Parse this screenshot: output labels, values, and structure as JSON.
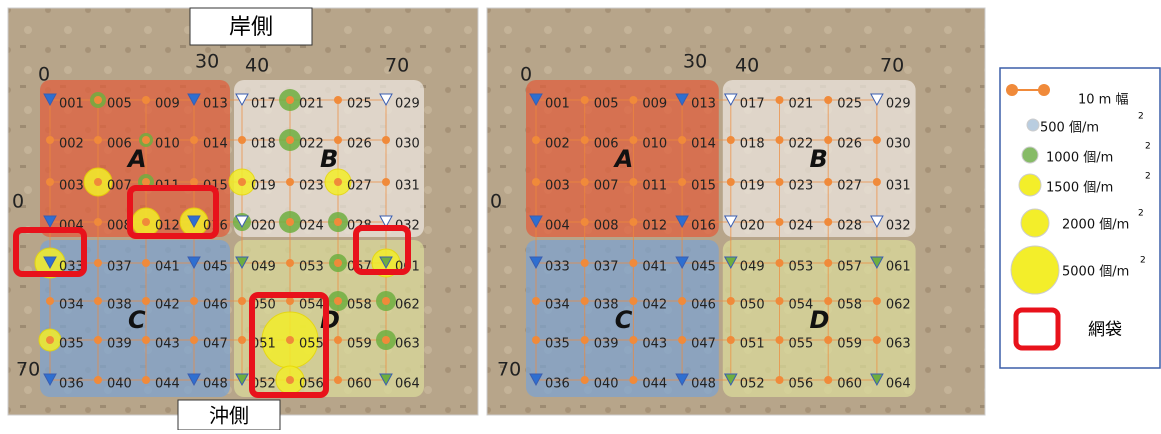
{
  "top_label": "岸側",
  "bottom_label": "沖側",
  "axis_labels": {
    "x0": "0",
    "x30": "30",
    "x40": "40",
    "x70": "70",
    "y0": "0",
    "y70": "70"
  },
  "quadrants": [
    "A",
    "B",
    "C",
    "D"
  ],
  "stations": [
    "001",
    "002",
    "003",
    "004",
    "005",
    "006",
    "007",
    "008",
    "009",
    "010",
    "011",
    "012",
    "013",
    "014",
    "015",
    "016",
    "017",
    "018",
    "019",
    "020",
    "021",
    "022",
    "023",
    "024",
    "025",
    "026",
    "027",
    "028",
    "029",
    "030",
    "031",
    "032",
    "033",
    "034",
    "035",
    "036",
    "037",
    "038",
    "039",
    "040",
    "041",
    "042",
    "043",
    "044",
    "045",
    "046",
    "047",
    "048",
    "049",
    "050",
    "051",
    "052",
    "053",
    "054",
    "055",
    "056",
    "057",
    "058",
    "059",
    "060",
    "061",
    "062",
    "063",
    "064"
  ],
  "legend": {
    "line": "10 m 幅",
    "density": [
      {
        "label": "500 個/m",
        "sup": "2"
      },
      {
        "label": "1000 個/m",
        "sup": "2"
      },
      {
        "label": "1500 個/m",
        "sup": "2"
      },
      {
        "label": "2000 個/m",
        "sup": "2"
      },
      {
        "label": "5000 個/m",
        "sup": "2"
      }
    ],
    "bag": "網袋"
  }
}
